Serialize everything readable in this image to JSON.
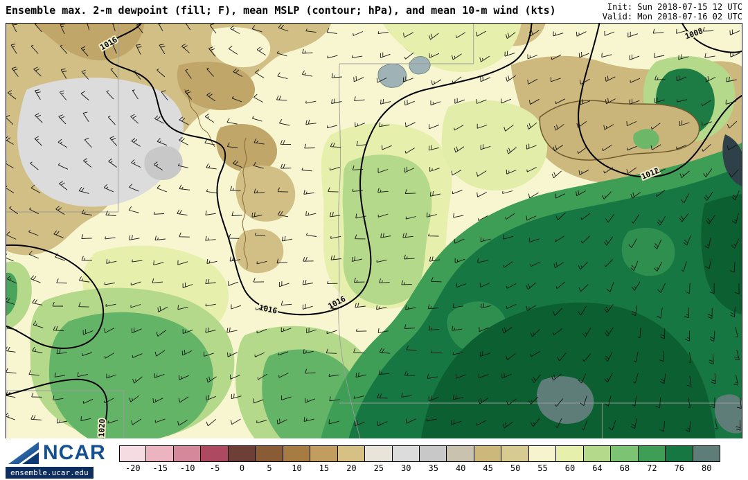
{
  "header": {
    "title": "Ensemble max. 2-m dewpoint (fill; F), mean MSLP (contour; hPa), and mean 10-m wind (kts)",
    "init": "Init: Sun 2018-07-15 12 UTC",
    "valid": "Valid: Mon 2018-07-16 02 UTC"
  },
  "map": {
    "units_fill": "F",
    "units_contour": "hPa",
    "units_wind": "kts",
    "contour_values_shown": [
      1008,
      1012,
      1016,
      1020
    ],
    "contour_labels": [
      {
        "text": "1016"
      },
      {
        "text": "1016"
      },
      {
        "text": "1016"
      },
      {
        "text": "1012"
      },
      {
        "text": "1008"
      },
      {
        "text": "1020"
      }
    ]
  },
  "colorbar": {
    "values": [
      "-20",
      "-15",
      "-10",
      "-5",
      "0",
      "5",
      "10",
      "15",
      "20",
      "25",
      "30",
      "35",
      "40",
      "45",
      "50",
      "55",
      "60",
      "64",
      "68",
      "72",
      "76",
      "80"
    ],
    "colors": [
      "#f4dce2",
      "#ecb3c1",
      "#d5879b",
      "#ad4a62",
      "#6e3f36",
      "#8a5c35",
      "#a67c42",
      "#c19e5f",
      "#d6c083",
      "#e8e4da",
      "#dcdcdc",
      "#c8c8c8",
      "#c9c2ae",
      "#cdb87b",
      "#d8cb92",
      "#f6f4cf",
      "#e7efad",
      "#b4d98b",
      "#7cc474",
      "#3f9e55",
      "#177742",
      "#5e7d78"
    ]
  },
  "footer": {
    "logo_text": "NCAR",
    "site": "ensemble.ucar.edu"
  }
}
